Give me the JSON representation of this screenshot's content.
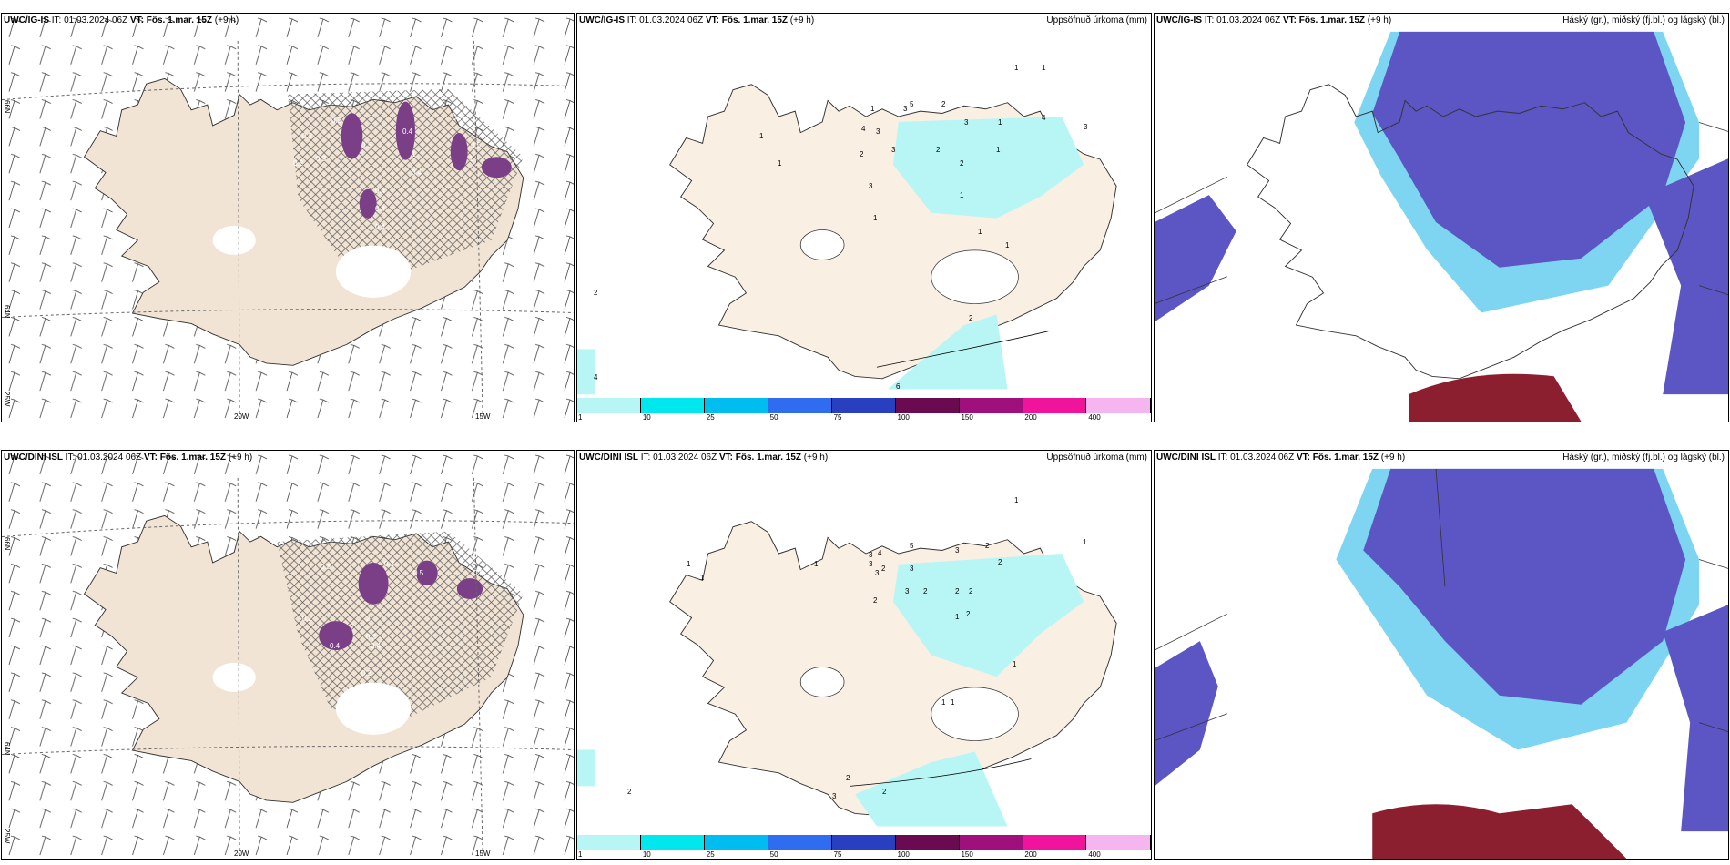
{
  "rows": [
    {
      "model": "UWC/IG-IS",
      "it_label": "IT:",
      "init_time": "01.03.2024 06Z",
      "vt_label": "VT:",
      "valid_time": "Fös. 1.mar. 15Z",
      "lead": "(+9 h)",
      "lat_labels": [
        "66N",
        "64N",
        "25W"
      ],
      "lon_labels": [
        "20W",
        "15W"
      ],
      "cloud_values": [
        "0.2",
        "0.2",
        "0.3",
        "0.3",
        "0.4",
        "0.5",
        "0.2",
        "0.4",
        "0.4",
        "0.7",
        "0.4",
        "1",
        "1",
        "1",
        "0.4"
      ],
      "precip_values": [
        "1",
        "2",
        "3",
        "3",
        "4",
        "5",
        "2",
        "3",
        "3",
        "2",
        "3",
        "1",
        "1",
        "4",
        "1",
        "1",
        "3",
        "2",
        "1",
        "1",
        "1",
        "1",
        "1",
        "1",
        "2",
        "4",
        "6",
        "2"
      ]
    },
    {
      "model": "UWC/DINI ISL",
      "it_label": "IT:",
      "init_time": "01.03.2024 06Z",
      "vt_label": "VT:",
      "valid_time": "Fös. 1.mar. 15Z",
      "lead": "(+9 h)",
      "lat_labels": [
        "66N",
        "64N",
        "25W"
      ],
      "lon_labels": [
        "20W",
        "15W"
      ],
      "cloud_values": [
        "0.3",
        "0.3",
        "0.5",
        "0.5",
        "2",
        "0.2",
        "0.4",
        "0.4",
        "0.2",
        "0.2",
        "0.5"
      ],
      "precip_values": [
        "1",
        "1",
        "1",
        "3",
        "4",
        "3",
        "3",
        "5",
        "2",
        "3",
        "3",
        "3",
        "2",
        "2",
        "2",
        "2",
        "2",
        "2",
        "1",
        "2",
        "1",
        "1",
        "1",
        "1",
        "1",
        "2",
        "2",
        "3",
        "2"
      ]
    }
  ],
  "precip_title": "Uppsöfnuð úrkoma (mm)",
  "cloud_title": "Háský (gr.), miðský (fj.bl.) og lágský (bl.)",
  "colorbar": {
    "labels": [
      "1",
      "10",
      "25",
      "50",
      "75",
      "100",
      "150",
      "200",
      "400"
    ],
    "colors": [
      "#b8f6f6",
      "#00e8ee",
      "#00bdf0",
      "#2f6cf0",
      "#2a3fbf",
      "#6a0a50",
      "#a0107d",
      "#f0139b",
      "#f5b6f0"
    ]
  },
  "colors": {
    "land": "#f2e4d4",
    "land_light": "#faefe3",
    "precip_cyan": "#b8f6f6",
    "cloud_purple": "#5c55c4",
    "cloud_blue": "#3a6fe6",
    "cloud_cyan": "#7ed5f2",
    "high_cloud_red": "#8b1f30"
  }
}
